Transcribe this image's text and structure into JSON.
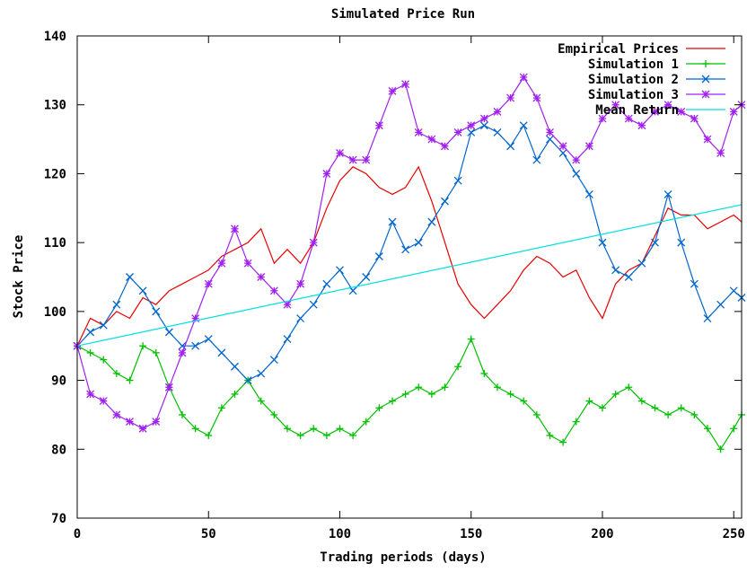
{
  "chart_data": {
    "type": "line",
    "title": "Simulated Price Run",
    "xlabel": "Trading periods (days)",
    "ylabel": "Stock Price",
    "xlim": [
      0,
      253
    ],
    "ylim": [
      70,
      140
    ],
    "grid": false,
    "legend_position": "top-right",
    "x_ticks": [
      0,
      50,
      100,
      150,
      200,
      250
    ],
    "y_ticks": [
      70,
      80,
      90,
      100,
      110,
      120,
      130,
      140
    ],
    "series": [
      {
        "name": "Empirical Prices",
        "color": "#e60000",
        "marker": "none",
        "x": [
          0,
          5,
          10,
          15,
          20,
          25,
          30,
          35,
          40,
          45,
          50,
          55,
          60,
          65,
          70,
          75,
          80,
          85,
          90,
          95,
          100,
          105,
          110,
          115,
          120,
          125,
          130,
          135,
          140,
          145,
          150,
          155,
          160,
          165,
          170,
          175,
          180,
          185,
          190,
          195,
          200,
          205,
          210,
          215,
          220,
          225,
          230,
          235,
          240,
          245,
          250,
          253
        ],
        "values": [
          95,
          99,
          98,
          100,
          99,
          102,
          101,
          103,
          104,
          105,
          106,
          108,
          109,
          110,
          112,
          107,
          109,
          107,
          110,
          115,
          119,
          121,
          120,
          118,
          117,
          118,
          121,
          116,
          110,
          104,
          101,
          99,
          101,
          103,
          106,
          108,
          107,
          105,
          106,
          102,
          99,
          104,
          106,
          107,
          111,
          115,
          114,
          114,
          112,
          113,
          114,
          113
        ]
      },
      {
        "name": "Simulation 1",
        "color": "#00c000",
        "marker": "plus",
        "x": [
          0,
          5,
          10,
          15,
          20,
          25,
          30,
          35,
          40,
          45,
          50,
          55,
          60,
          65,
          70,
          75,
          80,
          85,
          90,
          95,
          100,
          105,
          110,
          115,
          120,
          125,
          130,
          135,
          140,
          145,
          150,
          155,
          160,
          165,
          170,
          175,
          180,
          185,
          190,
          195,
          200,
          205,
          210,
          215,
          220,
          225,
          230,
          235,
          240,
          245,
          250,
          253
        ],
        "values": [
          95,
          94,
          93,
          91,
          90,
          95,
          94,
          89,
          85,
          83,
          82,
          86,
          88,
          90,
          87,
          85,
          83,
          82,
          83,
          82,
          83,
          82,
          84,
          86,
          87,
          88,
          89,
          88,
          89,
          92,
          96,
          91,
          89,
          88,
          87,
          85,
          82,
          81,
          84,
          87,
          86,
          88,
          89,
          87,
          86,
          85,
          86,
          85,
          83,
          80,
          83,
          85
        ]
      },
      {
        "name": "Simulation 2",
        "color": "#0066cc",
        "marker": "x",
        "x": [
          0,
          5,
          10,
          15,
          20,
          25,
          30,
          35,
          40,
          45,
          50,
          55,
          60,
          65,
          70,
          75,
          80,
          85,
          90,
          95,
          100,
          105,
          110,
          115,
          120,
          125,
          130,
          135,
          140,
          145,
          150,
          155,
          160,
          165,
          170,
          175,
          180,
          185,
          190,
          195,
          200,
          205,
          210,
          215,
          220,
          225,
          230,
          235,
          240,
          245,
          250,
          253
        ],
        "values": [
          95,
          97,
          98,
          101,
          105,
          103,
          100,
          97,
          95,
          95,
          96,
          94,
          92,
          90,
          91,
          93,
          96,
          99,
          101,
          104,
          106,
          103,
          105,
          108,
          113,
          109,
          110,
          113,
          116,
          119,
          126,
          127,
          126,
          124,
          127,
          122,
          125,
          123,
          120,
          117,
          110,
          106,
          105,
          107,
          110,
          117,
          110,
          104,
          99,
          101,
          103,
          102
        ]
      },
      {
        "name": "Simulation 3",
        "color": "#a020f0",
        "marker": "star",
        "x": [
          0,
          5,
          10,
          15,
          20,
          25,
          30,
          35,
          40,
          45,
          50,
          55,
          60,
          65,
          70,
          75,
          80,
          85,
          90,
          95,
          100,
          105,
          110,
          115,
          120,
          125,
          130,
          135,
          140,
          145,
          150,
          155,
          160,
          165,
          170,
          175,
          180,
          185,
          190,
          195,
          200,
          205,
          210,
          215,
          220,
          225,
          230,
          235,
          240,
          245,
          250,
          253
        ],
        "values": [
          95,
          88,
          87,
          85,
          84,
          83,
          84,
          89,
          94,
          99,
          104,
          107,
          112,
          107,
          105,
          103,
          101,
          104,
          110,
          120,
          123,
          122,
          122,
          127,
          132,
          133,
          126,
          125,
          124,
          126,
          127,
          128,
          129,
          131,
          134,
          131,
          126,
          124,
          122,
          124,
          128,
          130,
          128,
          127,
          129,
          130,
          129,
          128,
          125,
          123,
          129,
          130
        ]
      },
      {
        "name": "Mean Return",
        "color": "#00e0e0",
        "marker": "none",
        "x": [
          0,
          253
        ],
        "values": [
          95,
          115.5
        ]
      }
    ]
  }
}
